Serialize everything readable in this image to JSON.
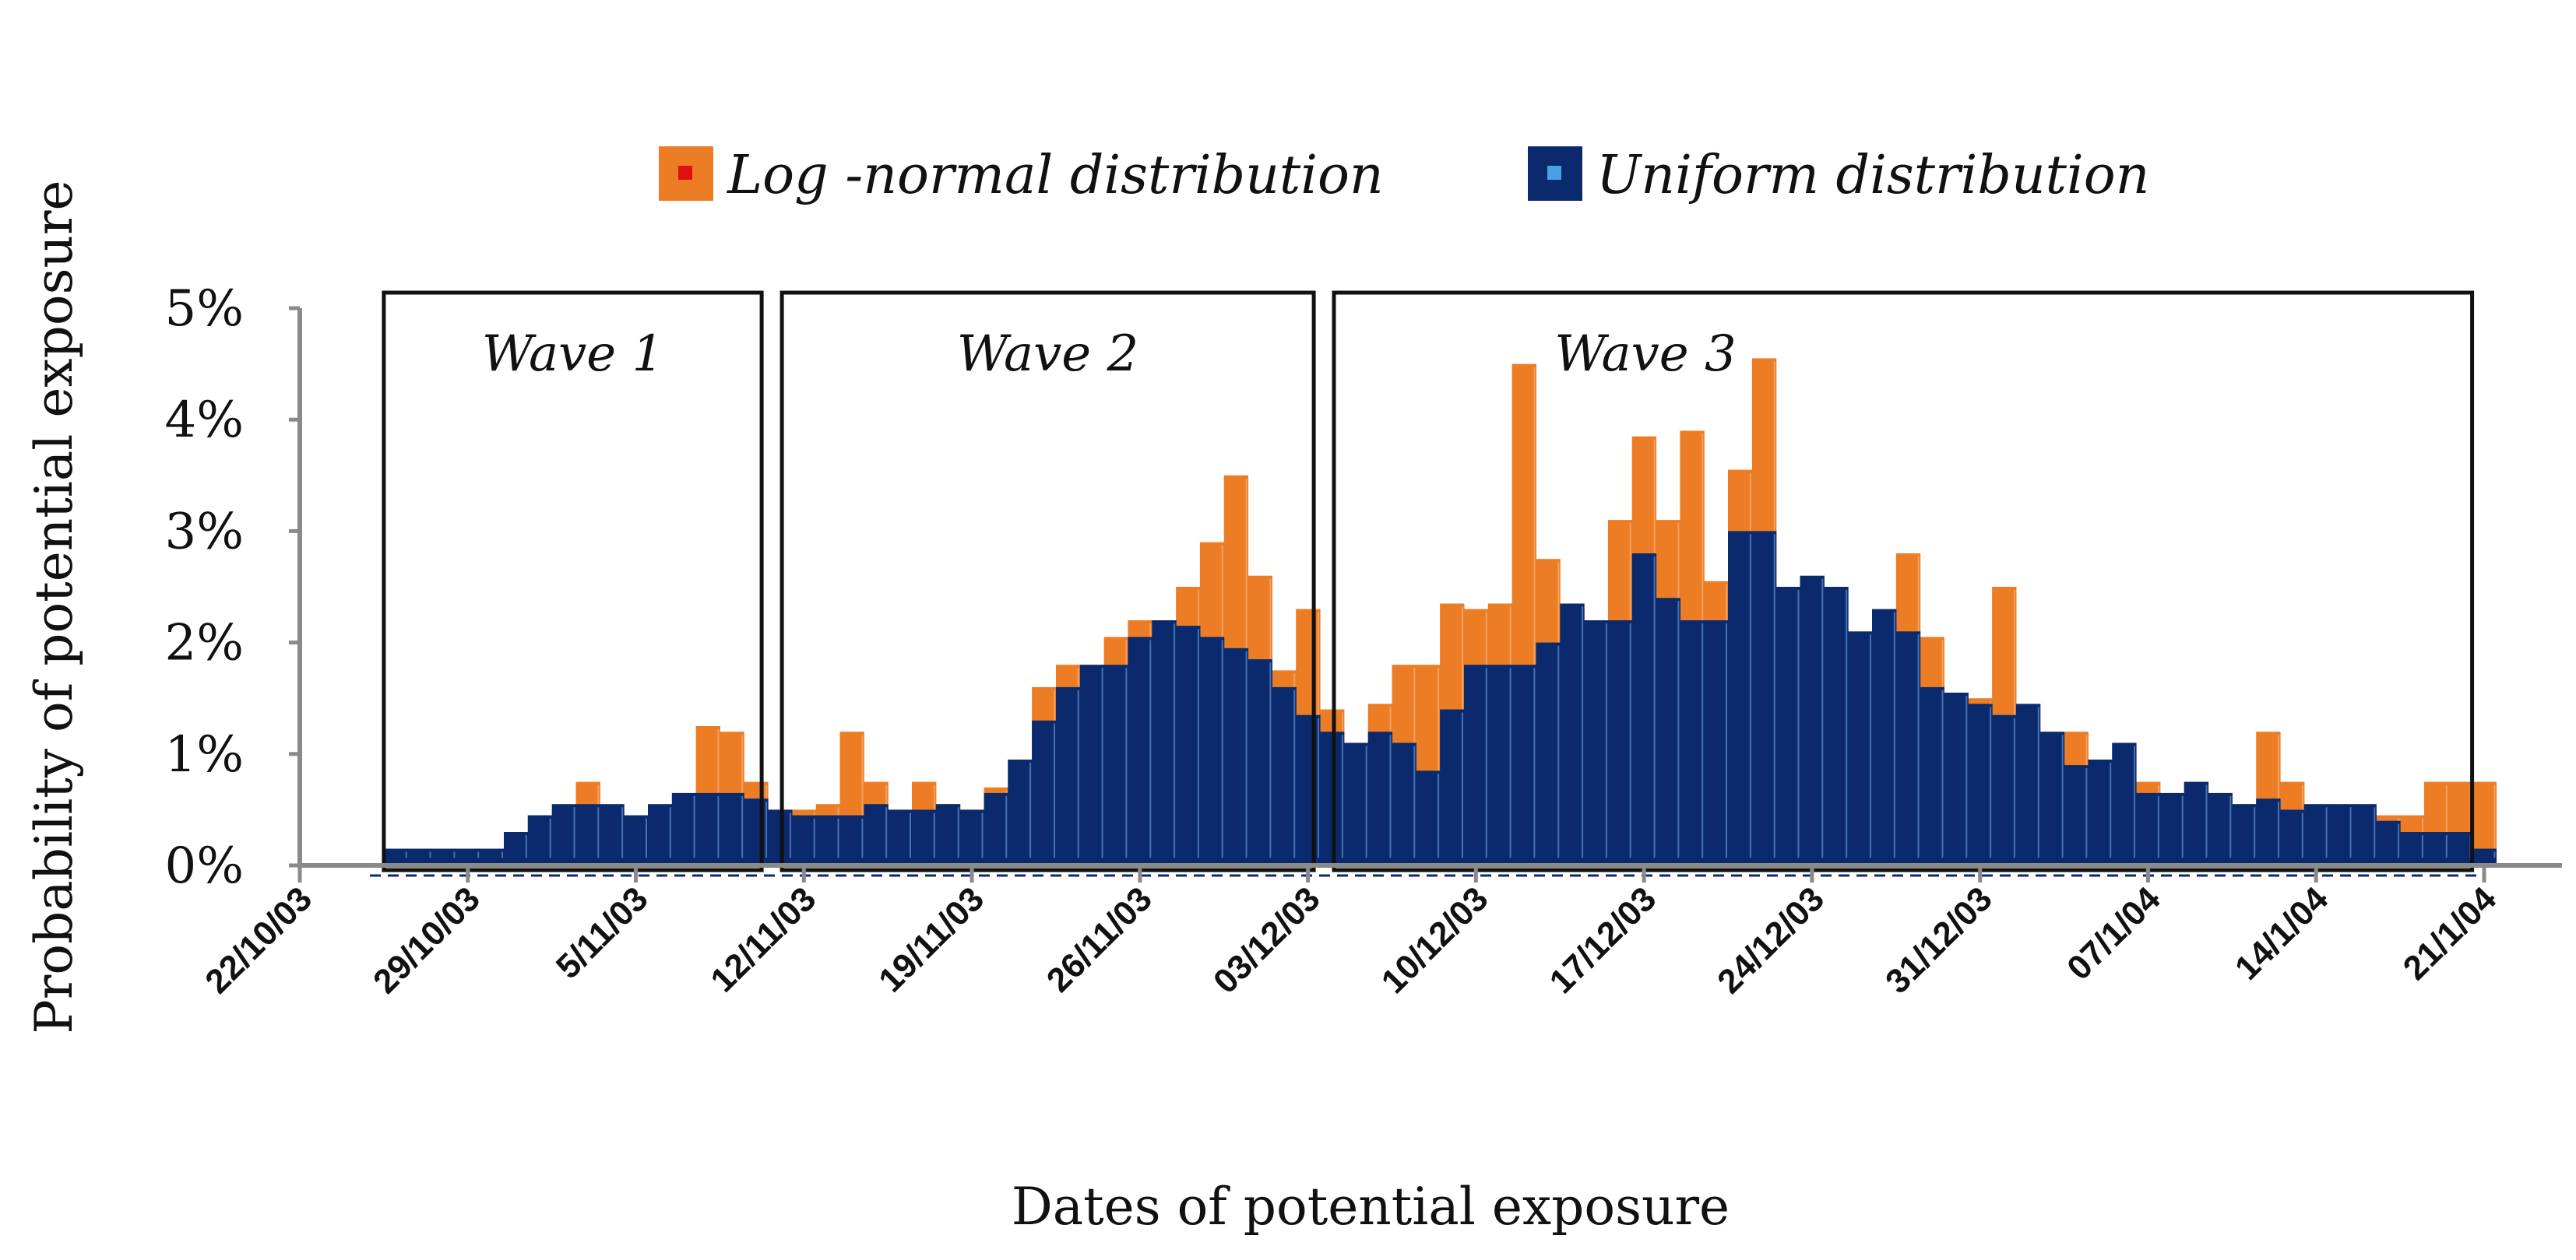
{
  "chart_data": {
    "type": "bar",
    "xlabel": "Dates of potential  exposure",
    "ylabel": "Probability of potential exposure",
    "ylim": [
      0,
      5
    ],
    "y_unit": "%",
    "y_ticks": [
      "0%",
      "1%",
      "2%",
      "3%",
      "4%",
      "5%"
    ],
    "x_range": [
      "2003-10-22",
      "2004-01-21"
    ],
    "x_ticks": [
      {
        "date": "2003-10-22",
        "label": "22/10/03"
      },
      {
        "date": "2003-10-29",
        "label": "29/10/03"
      },
      {
        "date": "2003-11-05",
        "label": "5/11/03"
      },
      {
        "date": "2003-11-12",
        "label": "12/11/03"
      },
      {
        "date": "2003-11-19",
        "label": "19/11/03"
      },
      {
        "date": "2003-11-26",
        "label": "26/11/03"
      },
      {
        "date": "2003-12-03",
        "label": "03/12/03"
      },
      {
        "date": "2003-12-10",
        "label": "10/12/03"
      },
      {
        "date": "2003-12-17",
        "label": "17/12/03"
      },
      {
        "date": "2003-12-24",
        "label": "24/12/03"
      },
      {
        "date": "2003-12-31",
        "label": "31/12/03"
      },
      {
        "date": "2004-01-07",
        "label": "07/1/04"
      },
      {
        "date": "2004-01-14",
        "label": "14/1/04"
      },
      {
        "date": "2004-01-21",
        "label": "21/1/04"
      }
    ],
    "legend_position": "top",
    "grid": false,
    "series": [
      {
        "name": "Log -normal distribution",
        "color": "#ed7d24",
        "x": [
          "2003-10-26",
          "2003-10-27",
          "2003-10-28",
          "2003-10-29",
          "2003-10-30",
          "2003-10-31",
          "2003-11-01",
          "2003-11-02",
          "2003-11-03",
          "2003-11-04",
          "2003-11-05",
          "2003-11-06",
          "2003-11-07",
          "2003-11-08",
          "2003-11-09",
          "2003-11-10",
          "2003-11-11",
          "2003-11-12",
          "2003-11-13",
          "2003-11-14",
          "2003-11-15",
          "2003-11-16",
          "2003-11-17",
          "2003-11-18",
          "2003-11-19",
          "2003-11-20",
          "2003-11-21",
          "2003-11-22",
          "2003-11-23",
          "2003-11-24",
          "2003-11-25",
          "2003-11-26",
          "2003-11-27",
          "2003-11-28",
          "2003-11-29",
          "2003-11-30",
          "2003-12-01",
          "2003-12-02",
          "2003-12-03",
          "2003-12-04",
          "2003-12-05",
          "2003-12-06",
          "2003-12-07",
          "2003-12-08",
          "2003-12-09",
          "2003-12-10",
          "2003-12-11",
          "2003-12-12",
          "2003-12-13",
          "2003-12-14",
          "2003-12-15",
          "2003-12-16",
          "2003-12-17",
          "2003-12-18",
          "2003-12-19",
          "2003-12-20",
          "2003-12-21",
          "2003-12-22",
          "2003-12-23",
          "2003-12-24",
          "2003-12-25",
          "2003-12-26",
          "2003-12-27",
          "2003-12-28",
          "2003-12-29",
          "2003-12-30",
          "2003-12-31",
          "2004-01-01",
          "2004-01-02",
          "2004-01-03",
          "2004-01-04",
          "2004-01-05",
          "2004-01-06",
          "2004-01-07",
          "2004-01-08",
          "2004-01-09",
          "2004-01-10",
          "2004-01-11",
          "2004-01-12",
          "2004-01-13",
          "2004-01-14",
          "2004-01-15",
          "2004-01-16",
          "2004-01-17",
          "2004-01-18",
          "2004-01-19",
          "2004-01-20",
          "2004-01-21"
        ],
        "values": [
          0.15,
          0.15,
          0.15,
          0.15,
          0.15,
          0.3,
          0.45,
          0.5,
          0.75,
          0.5,
          0.45,
          0.5,
          0.55,
          1.25,
          1.2,
          0.75,
          0.5,
          0.5,
          0.55,
          1.2,
          0.75,
          0.5,
          0.75,
          0.55,
          0.5,
          0.7,
          0.95,
          1.6,
          1.8,
          1.8,
          2.05,
          2.2,
          2.15,
          2.5,
          2.9,
          3.5,
          2.6,
          1.75,
          2.3,
          1.4,
          0.9,
          1.45,
          1.8,
          1.8,
          2.35,
          2.3,
          2.35,
          4.5,
          2.75,
          2.3,
          2.2,
          3.1,
          3.85,
          3.1,
          3.9,
          2.55,
          3.55,
          4.55,
          2.15,
          1.65,
          1.6,
          1.5,
          1.4,
          2.8,
          2.05,
          1.0,
          1.5,
          2.5,
          0.75,
          0.65,
          1.2,
          0.75,
          0.65,
          0.75,
          0.55,
          0.75,
          0.5,
          0.55,
          1.2,
          0.75,
          0.45,
          0.35,
          0.35,
          0.45,
          0.45,
          0.75,
          0.75,
          0.75
        ]
      },
      {
        "name": "Uniform distribution",
        "color": "#0b2a6e",
        "x": [
          "2003-10-26",
          "2003-10-27",
          "2003-10-28",
          "2003-10-29",
          "2003-10-30",
          "2003-10-31",
          "2003-11-01",
          "2003-11-02",
          "2003-11-03",
          "2003-11-04",
          "2003-11-05",
          "2003-11-06",
          "2003-11-07",
          "2003-11-08",
          "2003-11-09",
          "2003-11-10",
          "2003-11-11",
          "2003-11-12",
          "2003-11-13",
          "2003-11-14",
          "2003-11-15",
          "2003-11-16",
          "2003-11-17",
          "2003-11-18",
          "2003-11-19",
          "2003-11-20",
          "2003-11-21",
          "2003-11-22",
          "2003-11-23",
          "2003-11-24",
          "2003-11-25",
          "2003-11-26",
          "2003-11-27",
          "2003-11-28",
          "2003-11-29",
          "2003-11-30",
          "2003-12-01",
          "2003-12-02",
          "2003-12-03",
          "2003-12-04",
          "2003-12-05",
          "2003-12-06",
          "2003-12-07",
          "2003-12-08",
          "2003-12-09",
          "2003-12-10",
          "2003-12-11",
          "2003-12-12",
          "2003-12-13",
          "2003-12-14",
          "2003-12-15",
          "2003-12-16",
          "2003-12-17",
          "2003-12-18",
          "2003-12-19",
          "2003-12-20",
          "2003-12-21",
          "2003-12-22",
          "2003-12-23",
          "2003-12-24",
          "2003-12-25",
          "2003-12-26",
          "2003-12-27",
          "2003-12-28",
          "2003-12-29",
          "2003-12-30",
          "2003-12-31",
          "2004-01-01",
          "2004-01-02",
          "2004-01-03",
          "2004-01-04",
          "2004-01-05",
          "2004-01-06",
          "2004-01-07",
          "2004-01-08",
          "2004-01-09",
          "2004-01-10",
          "2004-01-11",
          "2004-01-12",
          "2004-01-13",
          "2004-01-14",
          "2004-01-15",
          "2004-01-16",
          "2004-01-17",
          "2004-01-18",
          "2004-01-19",
          "2004-01-20",
          "2004-01-21"
        ],
        "values": [
          0.15,
          0.15,
          0.15,
          0.15,
          0.15,
          0.3,
          0.45,
          0.55,
          0.55,
          0.55,
          0.45,
          0.55,
          0.65,
          0.65,
          0.65,
          0.6,
          0.5,
          0.45,
          0.45,
          0.45,
          0.55,
          0.5,
          0.5,
          0.55,
          0.5,
          0.65,
          0.95,
          1.3,
          1.6,
          1.8,
          1.8,
          2.05,
          2.2,
          2.15,
          2.05,
          1.95,
          1.85,
          1.6,
          1.35,
          1.2,
          1.1,
          1.2,
          1.1,
          0.85,
          1.4,
          1.8,
          1.8,
          1.8,
          2.0,
          2.35,
          2.2,
          2.2,
          2.8,
          2.4,
          2.2,
          2.2,
          3.0,
          3.0,
          2.5,
          2.6,
          2.5,
          2.1,
          2.3,
          2.1,
          1.6,
          1.55,
          1.45,
          1.35,
          1.45,
          1.2,
          0.9,
          0.95,
          1.1,
          0.65,
          0.65,
          0.75,
          0.65,
          0.55,
          0.6,
          0.5,
          0.55,
          0.55,
          0.55,
          0.4,
          0.3,
          0.3,
          0.3,
          0.15
        ]
      }
    ],
    "annotations": [
      {
        "label": "Wave 1",
        "start": "2003-10-26",
        "end": "2003-11-11"
      },
      {
        "label": "Wave 2",
        "start": "2003-11-11",
        "end": "2003-12-04"
      },
      {
        "label": "Wave 3",
        "start": "2003-12-04",
        "end": "2004-01-21"
      }
    ]
  }
}
